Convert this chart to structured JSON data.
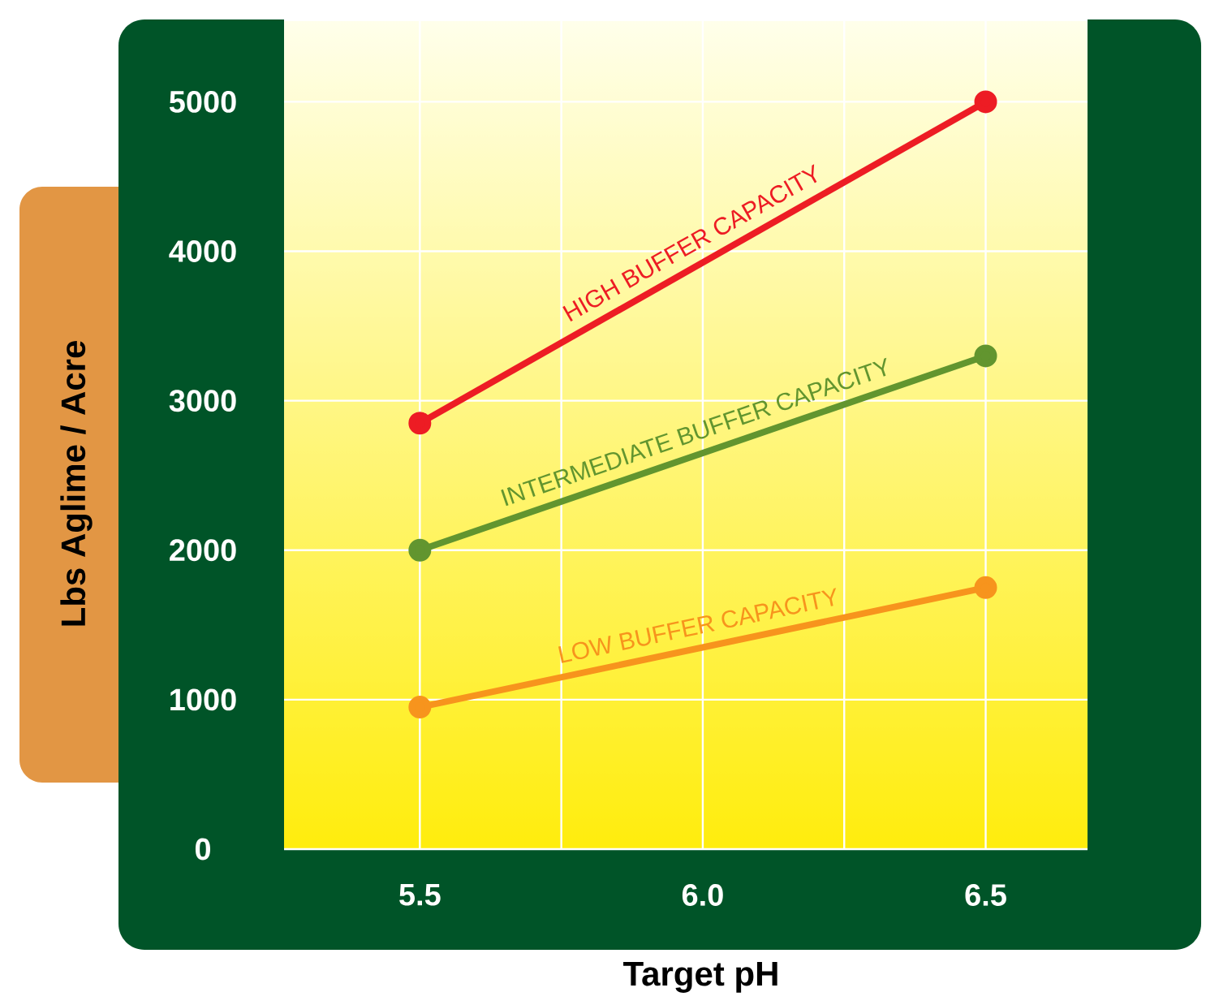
{
  "chart_data": {
    "type": "line",
    "xlabel": "Target pH",
    "ylabel": "Lbs Aglime / Acre",
    "x": [
      5.5,
      6.5
    ],
    "series": [
      {
        "name": "HIGH BUFFER CAPACITY",
        "color": "#ed1c24",
        "values": [
          2850,
          5000
        ]
      },
      {
        "name": "INTERMEDIATE BUFFER CAPACITY",
        "color": "#62952f",
        "values": [
          2000,
          3300
        ]
      },
      {
        "name": "LOW BUFFER CAPACITY",
        "color": "#f7941d",
        "values": [
          950,
          1750
        ]
      }
    ],
    "xlim": [
      5.26,
      6.68
    ],
    "ylim": [
      0,
      5540
    ],
    "xticks": [
      5.5,
      {
        "value": 5.75,
        "label": null
      },
      {
        "value": 6.0,
        "label": "6.0"
      },
      {
        "value": 6.25,
        "label": null
      },
      6.5
    ],
    "yticks": [
      0,
      1000,
      2000,
      3000,
      4000,
      5000
    ],
    "grid": true,
    "marker": "circle",
    "line_style": "solid"
  }
}
